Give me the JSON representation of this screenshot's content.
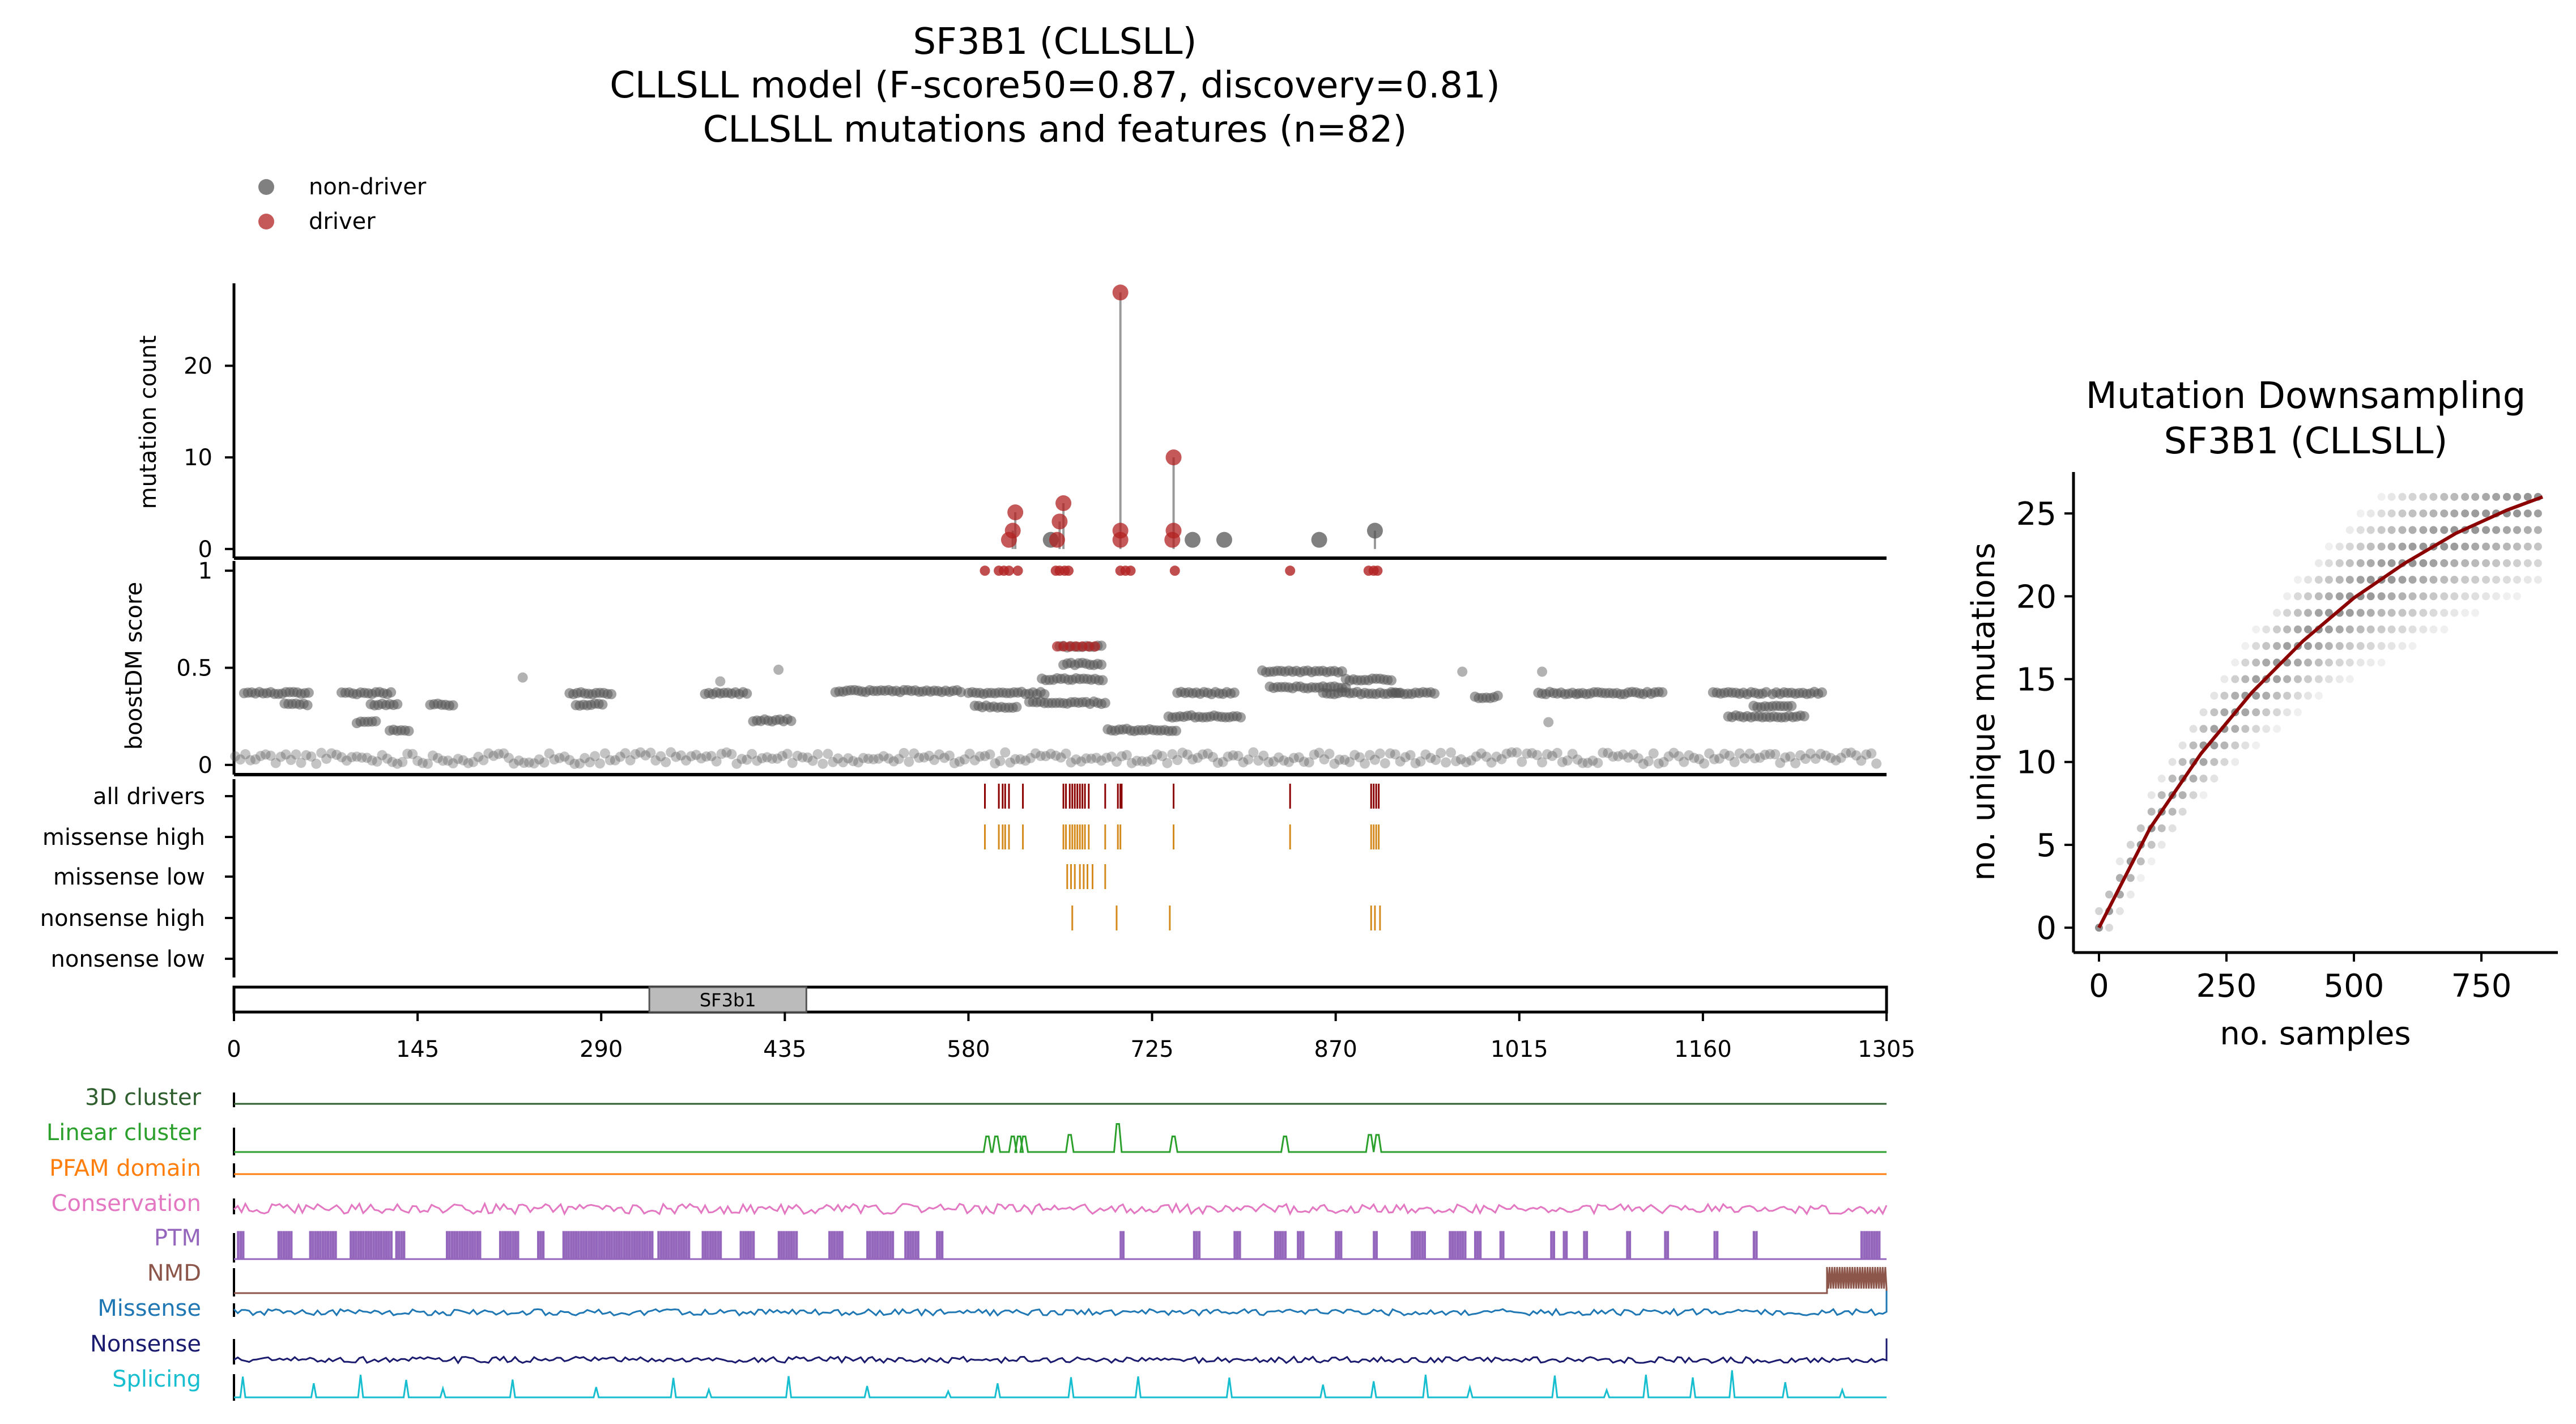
{
  "figure": {
    "title_lines": [
      "SF3B1 (CLLSLL)",
      "CLLSLL model (F-score50=0.87, discovery=0.81)",
      "CLLSLL mutations and features (n=82)"
    ],
    "legend": [
      {
        "label": "non-driver",
        "color": "#555555"
      },
      {
        "label": "driver",
        "color": "#b22222"
      }
    ]
  },
  "colors": {
    "non_driver": "#555555",
    "driver": "#b22222",
    "driver_dark": "#8b0000",
    "missense": "#d48a1c",
    "domain_fill": "#bbbbbb",
    "curve": "#8b0000"
  },
  "chart_data": [
    {
      "type": "scatter",
      "panel": "mutation-count",
      "ylabel": "mutation count",
      "ylim": [
        -1,
        29
      ],
      "yticks": [
        0,
        10,
        20
      ],
      "stems": true,
      "points": [
        {
          "x": 612,
          "y": 1,
          "driver": true
        },
        {
          "x": 615,
          "y": 2,
          "driver": true
        },
        {
          "x": 617,
          "y": 4,
          "driver": true
        },
        {
          "x": 645,
          "y": 1,
          "driver": false
        },
        {
          "x": 650,
          "y": 1,
          "driver": true
        },
        {
          "x": 652,
          "y": 3,
          "driver": true
        },
        {
          "x": 655,
          "y": 5,
          "driver": true
        },
        {
          "x": 700,
          "y": 1,
          "driver": true
        },
        {
          "x": 700,
          "y": 2,
          "driver": true
        },
        {
          "x": 700,
          "y": 28,
          "driver": true
        },
        {
          "x": 741,
          "y": 1,
          "driver": true
        },
        {
          "x": 742,
          "y": 2,
          "driver": true
        },
        {
          "x": 742,
          "y": 10,
          "driver": true
        },
        {
          "x": 757,
          "y": 1,
          "driver": false
        },
        {
          "x": 782,
          "y": 1,
          "driver": false
        },
        {
          "x": 857,
          "y": 1,
          "driver": false
        },
        {
          "x": 901,
          "y": 2,
          "driver": false
        }
      ]
    },
    {
      "type": "scatter",
      "panel": "boostdm-score",
      "ylabel": "boostDM score",
      "ylim": [
        -0.05,
        1.05
      ],
      "yticks": [
        0,
        0.5,
        1
      ],
      "driver_points_x": [
        593,
        604,
        608,
        612,
        619,
        649,
        652,
        656,
        659,
        700,
        704,
        708,
        743,
        834,
        896,
        900,
        903
      ],
      "clusters": [
        {
          "x0": 8,
          "x1": 60,
          "y": 0.37
        },
        {
          "x0": 40,
          "x1": 58,
          "y": 0.31
        },
        {
          "x0": 85,
          "x1": 125,
          "y": 0.37
        },
        {
          "x0": 108,
          "x1": 130,
          "y": 0.31
        },
        {
          "x0": 97,
          "x1": 112,
          "y": 0.22
        },
        {
          "x0": 123,
          "x1": 140,
          "y": 0.18
        },
        {
          "x0": 155,
          "x1": 175,
          "y": 0.31
        },
        {
          "x0": 265,
          "x1": 300,
          "y": 0.37
        },
        {
          "x0": 270,
          "x1": 292,
          "y": 0.31
        },
        {
          "x0": 372,
          "x1": 405,
          "y": 0.37
        },
        {
          "x0": 410,
          "x1": 440,
          "y": 0.23
        },
        {
          "x0": 475,
          "x1": 575,
          "y": 0.38
        },
        {
          "x0": 580,
          "x1": 640,
          "y": 0.37
        },
        {
          "x0": 585,
          "x1": 618,
          "y": 0.3
        },
        {
          "x0": 628,
          "x1": 688,
          "y": 0.32
        },
        {
          "x0": 638,
          "x1": 688,
          "y": 0.44
        },
        {
          "x0": 652,
          "x1": 686,
          "y": 0.61
        },
        {
          "x0": 655,
          "x1": 686,
          "y": 0.52
        },
        {
          "x0": 690,
          "x1": 745,
          "y": 0.18
        },
        {
          "x0": 745,
          "x1": 790,
          "y": 0.37
        },
        {
          "x0": 738,
          "x1": 795,
          "y": 0.25
        },
        {
          "x0": 812,
          "x1": 875,
          "y": 0.48
        },
        {
          "x0": 818,
          "x1": 878,
          "y": 0.4
        },
        {
          "x0": 860,
          "x1": 920,
          "y": 0.37
        },
        {
          "x0": 878,
          "x1": 915,
          "y": 0.44
        },
        {
          "x0": 915,
          "x1": 950,
          "y": 0.37
        },
        {
          "x0": 980,
          "x1": 1000,
          "y": 0.35
        },
        {
          "x0": 1030,
          "x1": 1062,
          "y": 0.37
        },
        {
          "x0": 1062,
          "x1": 1130,
          "y": 0.37
        },
        {
          "x0": 1168,
          "x1": 1210,
          "y": 0.37
        },
        {
          "x0": 1215,
          "x1": 1255,
          "y": 0.37
        },
        {
          "x0": 1180,
          "x1": 1240,
          "y": 0.25
        },
        {
          "x0": 1200,
          "x1": 1230,
          "y": 0.3
        }
      ],
      "isolated_points": [
        {
          "x": 228,
          "y": 0.45
        },
        {
          "x": 384,
          "y": 0.43
        },
        {
          "x": 430,
          "y": 0.49
        },
        {
          "x": 970,
          "y": 0.48
        },
        {
          "x": 1033,
          "y": 0.48
        },
        {
          "x": 1038,
          "y": 0.22
        }
      ]
    },
    {
      "type": "table",
      "panel": "mutation-tracks",
      "rows": [
        {
          "label": "all drivers",
          "color": "#8b0000",
          "x": [
            593,
            604,
            607,
            609,
            612,
            623,
            655,
            657,
            660,
            662,
            664,
            666,
            668,
            670,
            672,
            675,
            688,
            698,
            700,
            701,
            742,
            834,
            898,
            900,
            902,
            904
          ]
        },
        {
          "label": "missense high",
          "color": "#d48a1c",
          "x": [
            593,
            604,
            607,
            609,
            612,
            623,
            655,
            657,
            660,
            662,
            664,
            666,
            668,
            670,
            672,
            675,
            688,
            698,
            700,
            742,
            834,
            898,
            900,
            902,
            904
          ]
        },
        {
          "label": "missense low",
          "color": "#d48a1c",
          "x": [
            658,
            661,
            664,
            668,
            671,
            674,
            678,
            688
          ]
        },
        {
          "label": "nonsense high",
          "color": "#d48a1c",
          "x": [
            662,
            697,
            739,
            898,
            901,
            905
          ]
        },
        {
          "label": "nonsense low",
          "color": "#d48a1c",
          "x": []
        }
      ]
    },
    {
      "type": "bar",
      "panel": "protein-domains",
      "xlim": [
        0,
        1305
      ],
      "xticks": [
        0,
        145,
        290,
        435,
        580,
        725,
        870,
        1015,
        1160,
        1305
      ],
      "domains": [
        {
          "name": "SF3b1",
          "start": 328,
          "end": 452
        }
      ]
    },
    {
      "type": "line",
      "panel": "feature-tracks",
      "xlim": [
        0,
        1305
      ],
      "features": [
        {
          "label": "3D cluster",
          "color": "#2f5f2f",
          "style": "flat"
        },
        {
          "label": "Linear cluster",
          "color": "#2ca02c",
          "style": "peaks",
          "peaks": [
            {
              "x": 595,
              "h": 0.5
            },
            {
              "x": 602,
              "h": 0.5
            },
            {
              "x": 615,
              "h": 0.5
            },
            {
              "x": 620,
              "h": 0.5
            },
            {
              "x": 624,
              "h": 0.5
            },
            {
              "x": 660,
              "h": 0.55
            },
            {
              "x": 698,
              "h": 0.9
            },
            {
              "x": 742,
              "h": 0.5
            },
            {
              "x": 830,
              "h": 0.5
            },
            {
              "x": 897,
              "h": 0.55
            },
            {
              "x": 903,
              "h": 0.55
            }
          ]
        },
        {
          "label": "PFAM domain",
          "color": "#ff7f0e",
          "style": "flat"
        },
        {
          "label": "Conservation",
          "color": "#e377c2",
          "style": "noise"
        },
        {
          "label": "PTM",
          "color": "#9467bd",
          "style": "spikes",
          "segments": [
            [
              3,
              8
            ],
            [
              35,
              45
            ],
            [
              60,
              80
            ],
            [
              92,
              125
            ],
            [
              128,
              135
            ],
            [
              168,
              195
            ],
            [
              210,
              225
            ],
            [
              240,
              245
            ],
            [
              260,
              300
            ],
            [
              300,
              330
            ],
            [
              335,
              360
            ],
            [
              370,
              385
            ],
            [
              400,
              410
            ],
            [
              430,
              445
            ],
            [
              470,
              480
            ],
            [
              500,
              520
            ],
            [
              530,
              540
            ],
            [
              555,
              560
            ],
            [
              700,
              702
            ],
            [
              758,
              762
            ],
            [
              790,
              794
            ],
            [
              822,
              830
            ],
            [
              840,
              844
            ],
            [
              870,
              874
            ],
            [
              900,
              902
            ],
            [
              930,
              940
            ],
            [
              960,
              972
            ],
            [
              980,
              984
            ],
            [
              1000,
              1002
            ],
            [
              1040,
              1042
            ],
            [
              1050,
              1052
            ],
            [
              1066,
              1068
            ],
            [
              1100,
              1102
            ],
            [
              1130,
              1132
            ],
            [
              1169,
              1171
            ],
            [
              1200,
              1202
            ],
            [
              1285,
              1300
            ]
          ]
        },
        {
          "label": "NMD",
          "color": "#8c564b",
          "style": "block",
          "range": [
            1258,
            1305
          ]
        },
        {
          "label": "Missense",
          "color": "#1f77b4",
          "style": "noise"
        },
        {
          "label": "Nonsense",
          "color": "#1a1a6e",
          "style": "noise"
        },
        {
          "label": "Splicing",
          "color": "#17becf",
          "style": "splice",
          "peaks": [
            7,
            63,
            100,
            136,
            165,
            220,
            286,
            347,
            375,
            438,
            500,
            564,
            603,
            661,
            714,
            786,
            860,
            900,
            941,
            976,
            1043,
            1084,
            1115,
            1152,
            1183,
            1225,
            1270
          ]
        }
      ]
    },
    {
      "type": "scatter",
      "panel": "downsampling",
      "title_lines": [
        "Mutation Downsampling",
        "SF3B1 (CLLSLL)"
      ],
      "xlabel": "no. samples",
      "ylabel": "no. unique mutations",
      "xlim": [
        -50,
        900
      ],
      "ylim": [
        -1.5,
        27.5
      ],
      "xticks": [
        0,
        250,
        500,
        750
      ],
      "yticks": [
        0,
        5,
        10,
        15,
        20,
        25
      ],
      "sample_x": [
        0,
        20,
        41,
        62,
        82,
        103,
        123,
        144,
        164,
        185,
        205,
        226,
        246,
        267,
        287,
        308,
        328,
        349,
        369,
        390,
        410,
        431,
        451,
        472,
        492,
        513,
        533,
        554,
        574,
        595,
        615,
        636,
        656,
        677,
        697,
        718,
        738,
        759,
        779,
        800,
        820,
        841,
        861
      ],
      "curve": {
        "x": [
          0,
          100,
          200,
          300,
          400,
          500,
          600,
          700,
          800,
          870
        ],
        "y": [
          0,
          6,
          10.5,
          14.2,
          17.3,
          19.9,
          22.0,
          23.8,
          25.2,
          26.0
        ]
      },
      "max_unique": 26
    }
  ]
}
